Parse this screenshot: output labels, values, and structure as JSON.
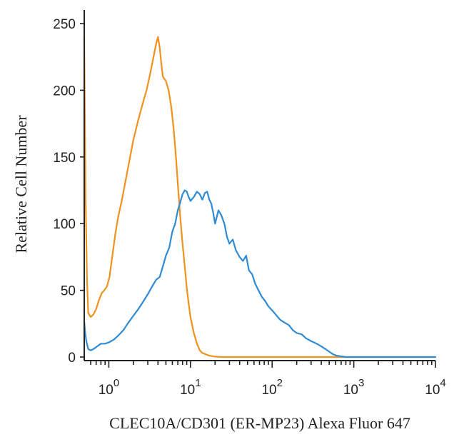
{
  "chart_data": {
    "type": "line",
    "xlabel": "CLEC10A/CD301 (ER-MP23) Alexa Fluor 647",
    "ylabel": "Relative Cell Number",
    "xscale": "log",
    "xlim": [
      0.5,
      10000
    ],
    "ylim": [
      0,
      250
    ],
    "grid": false,
    "legend": "none",
    "yticks": [
      "0",
      "50",
      "100",
      "150",
      "200",
      "250"
    ],
    "xticks": [
      {
        "base": "10",
        "exp": "0"
      },
      {
        "base": "10",
        "exp": "1"
      },
      {
        "base": "10",
        "exp": "2"
      },
      {
        "base": "10",
        "exp": "3"
      },
      {
        "base": "10",
        "exp": "4"
      }
    ],
    "series": [
      {
        "color": "#f0921e",
        "x": [
          0.5,
          0.52,
          0.54,
          0.56,
          0.6,
          0.65,
          0.7,
          0.76,
          0.82,
          0.88,
          0.95,
          1.02,
          1.1,
          1.2,
          1.3,
          1.45,
          1.6,
          1.8,
          2.0,
          2.3,
          2.6,
          2.9,
          3.2,
          3.5,
          3.8,
          4.0,
          4.2,
          4.4,
          4.6,
          5.0,
          5.4,
          5.8,
          6.2,
          6.6,
          7.0,
          7.5,
          8.0,
          8.5,
          9.0,
          9.5,
          10.0,
          11.0,
          12.0,
          13.0,
          14.0,
          15.5,
          17.0,
          19.0,
          21.0,
          25.0,
          35.0,
          60.0,
          150.0,
          500.0,
          10000.0
        ],
        "y": [
          240,
          120,
          60,
          33,
          30,
          32,
          36,
          43,
          48,
          50,
          53,
          60,
          75,
          92,
          105,
          118,
          132,
          148,
          163,
          178,
          190,
          200,
          212,
          224,
          235,
          240,
          232,
          220,
          210,
          207,
          200,
          188,
          172,
          152,
          130,
          105,
          85,
          68,
          52,
          40,
          30,
          18,
          10,
          5,
          3,
          2,
          1,
          0.5,
          0.2,
          0,
          0,
          0,
          0,
          0,
          0
        ]
      },
      {
        "color": "#2e8bd4",
        "x": [
          0.5,
          0.51,
          0.53,
          0.56,
          0.6,
          0.65,
          0.72,
          0.8,
          0.9,
          1.0,
          1.15,
          1.3,
          1.5,
          1.7,
          2.0,
          2.3,
          2.6,
          3.0,
          3.4,
          3.8,
          4.2,
          4.6,
          5.0,
          5.5,
          6.0,
          6.5,
          7.0,
          7.5,
          8.0,
          8.5,
          9.0,
          9.5,
          10.0,
          11.0,
          12.0,
          13.0,
          14.0,
          15.0,
          16.0,
          17.0,
          18.0,
          19.0,
          20.0,
          22.0,
          24.0,
          26.0,
          28.0,
          30.0,
          33.0,
          36.0,
          40.0,
          44.0,
          48.0,
          52.0,
          57.0,
          62.0,
          68.0,
          75.0,
          82.0,
          90.0,
          100.0,
          110.0,
          125.0,
          140.0,
          160.0,
          180.0,
          200.0,
          230.0,
          260.0,
          300.0,
          350.0,
          400.0,
          450.0,
          500.0,
          560.0,
          620.0,
          700.0,
          800.0,
          1000.0,
          1500.0,
          3000.0,
          10000.0
        ],
        "y": [
          27,
          20,
          12,
          6,
          5,
          6,
          8,
          10,
          10,
          11,
          13,
          16,
          20,
          25,
          31,
          36,
          41,
          47,
          53,
          58,
          60,
          68,
          76,
          82,
          94,
          100,
          110,
          116,
          122,
          125,
          124,
          120,
          117,
          120,
          124,
          122,
          118,
          123,
          124,
          118,
          115,
          108,
          100,
          110,
          106,
          100,
          90,
          85,
          88,
          80,
          75,
          72,
          76,
          65,
          62,
          55,
          50,
          45,
          42,
          38,
          35,
          32,
          28,
          26,
          24,
          20,
          18,
          17,
          14,
          12,
          10,
          8,
          6,
          4,
          2,
          1,
          0.5,
          0,
          0,
          0,
          0,
          0
        ]
      }
    ]
  }
}
